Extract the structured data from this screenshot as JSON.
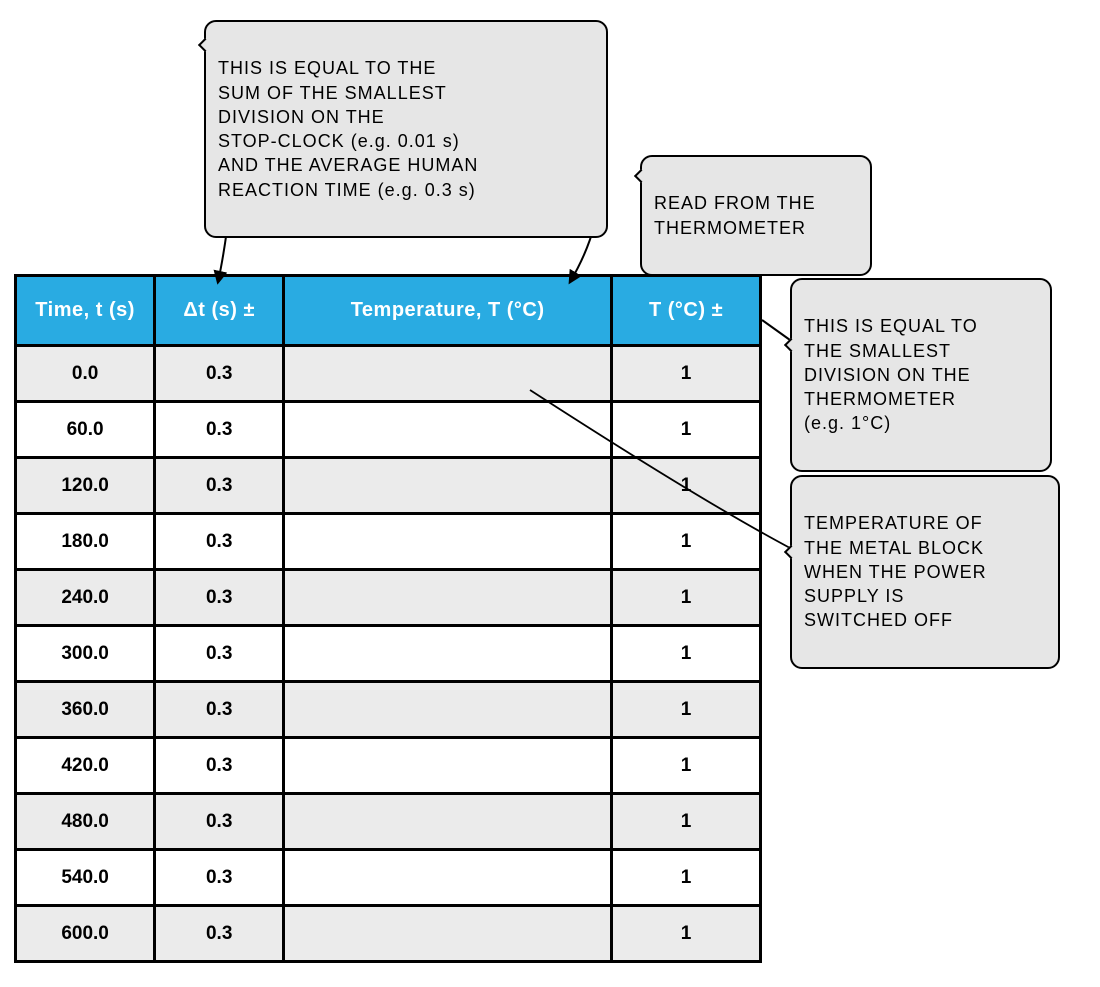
{
  "colors": {
    "header_bg": "#29abe2",
    "header_text": "#ffffff",
    "row_even_bg": "#e6e6e6",
    "row_odd_bg": "#ffffff",
    "callout_bg": "#e6e6e6",
    "border": "#000000",
    "watermark_circle": "#29abe2",
    "watermark_fill": "#f5faff"
  },
  "table": {
    "columns": [
      {
        "key": "time",
        "label": "Time, t (s)"
      },
      {
        "key": "dt",
        "label": "Δt (s) ±"
      },
      {
        "key": "temp",
        "label": "Temperature, T (°C)"
      },
      {
        "key": "tpm",
        "label": "T (°C) ±"
      }
    ],
    "rows": [
      {
        "time": "0.0",
        "dt": "0.3",
        "temp": "",
        "tpm": "1"
      },
      {
        "time": "60.0",
        "dt": "0.3",
        "temp": "",
        "tpm": "1"
      },
      {
        "time": "120.0",
        "dt": "0.3",
        "temp": "",
        "tpm": "1"
      },
      {
        "time": "180.0",
        "dt": "0.3",
        "temp": "",
        "tpm": "1"
      },
      {
        "time": "240.0",
        "dt": "0.3",
        "temp": "",
        "tpm": "1"
      },
      {
        "time": "300.0",
        "dt": "0.3",
        "temp": "",
        "tpm": "1"
      },
      {
        "time": "360.0",
        "dt": "0.3",
        "temp": "",
        "tpm": "1"
      },
      {
        "time": "420.0",
        "dt": "0.3",
        "temp": "",
        "tpm": "1"
      },
      {
        "time": "480.0",
        "dt": "0.3",
        "temp": "",
        "tpm": "1"
      },
      {
        "time": "540.0",
        "dt": "0.3",
        "temp": "",
        "tpm": "1"
      },
      {
        "time": "600.0",
        "dt": "0.3",
        "temp": "",
        "tpm": "1"
      }
    ]
  },
  "callouts": {
    "dt_note": "THIS  IS  EQUAL  TO  THE\nSUM  OF  THE  SMALLEST\nDIVISION  ON  THE\nSTOP-CLOCK  (e.g.  0.01 s)\nAND  THE  AVERAGE  HUMAN\nREACTION  TIME  (e.g.  0.3 s)",
    "temp_read": "READ  FROM  THE\nTHERMOMETER",
    "tpm_note": "THIS  IS  EQUAL  TO\nTHE  SMALLEST\nDIVISION  ON  THE\nTHERMOMETER\n(e.g.  1°C)",
    "first_row": "TEMPERATURE  OF\nTHE  METAL  BLOCK\nWHEN  THE  POWER\nSUPPLY  IS\nSWITCHED  OFF"
  }
}
